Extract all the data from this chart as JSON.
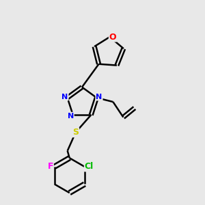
{
  "background_color": "#e8e8e8",
  "bond_color": "#000000",
  "bond_width": 1.8,
  "figsize": [
    3.0,
    3.0
  ],
  "dpi": 100,
  "colors": {
    "N": "#0000ff",
    "O": "#ff0000",
    "S": "#cccc00",
    "F": "#ff00ff",
    "Cl": "#00bb00",
    "C": "#000000"
  }
}
